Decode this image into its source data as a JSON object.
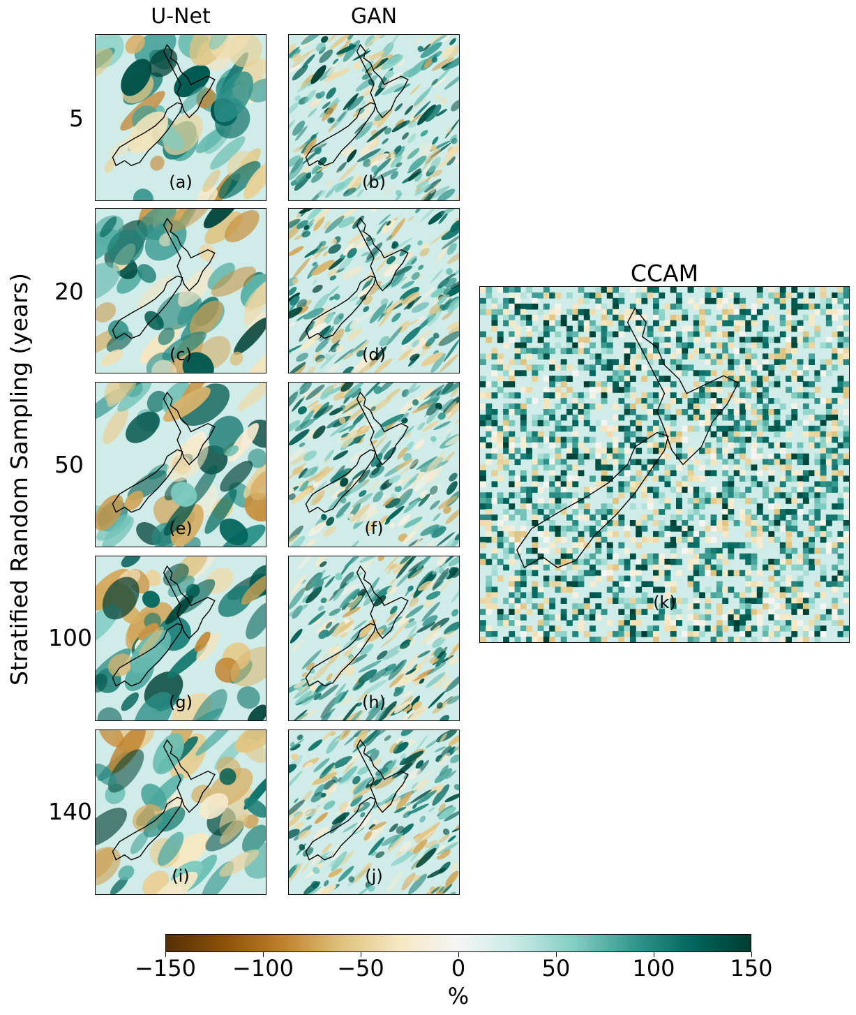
{
  "chart_data": {
    "type": "heatmap",
    "columns": [
      "U-Net",
      "GAN"
    ],
    "rows": [
      "5",
      "20",
      "50",
      "100",
      "140"
    ],
    "ylabel": "Stratified Random Sampling (years)",
    "panels": [
      {
        "label": "(a)",
        "model": "U-Net",
        "years": "5",
        "seed": 11,
        "style": "smooth"
      },
      {
        "label": "(b)",
        "model": "GAN",
        "years": "5",
        "seed": 12,
        "style": "noisy"
      },
      {
        "label": "(c)",
        "model": "U-Net",
        "years": "20",
        "seed": 21,
        "style": "smooth"
      },
      {
        "label": "(d)",
        "model": "GAN",
        "years": "20",
        "seed": 22,
        "style": "noisy"
      },
      {
        "label": "(e)",
        "model": "U-Net",
        "years": "50",
        "seed": 31,
        "style": "smooth"
      },
      {
        "label": "(f)",
        "model": "GAN",
        "years": "50",
        "seed": 32,
        "style": "noisy"
      },
      {
        "label": "(g)",
        "model": "U-Net",
        "years": "100",
        "seed": 41,
        "style": "smooth"
      },
      {
        "label": "(h)",
        "model": "GAN",
        "years": "100",
        "seed": 42,
        "style": "noisy"
      },
      {
        "label": "(i)",
        "model": "U-Net",
        "years": "140",
        "seed": 51,
        "style": "smooth"
      },
      {
        "label": "(j)",
        "model": "GAN",
        "years": "140",
        "seed": 52,
        "style": "noisy"
      },
      {
        "label": "(k)",
        "model": "CCAM",
        "years": "",
        "seed": 61,
        "style": "blocky"
      }
    ],
    "reference_title": "CCAM",
    "colorbar": {
      "min": -150,
      "max": 150,
      "ticks": [
        -150,
        -100,
        -50,
        0,
        50,
        100,
        150
      ],
      "tick_labels": [
        "−150",
        "−100",
        "−50",
        "0",
        "50",
        "100",
        "150"
      ],
      "label": "%",
      "colormap": "BrBG",
      "colors": [
        "#543005",
        "#8c510a",
        "#bf812d",
        "#dfc27d",
        "#f6e8c3",
        "#f5f5f5",
        "#c7eae5",
        "#80cdc1",
        "#35978f",
        "#01665e",
        "#003c30"
      ]
    }
  }
}
